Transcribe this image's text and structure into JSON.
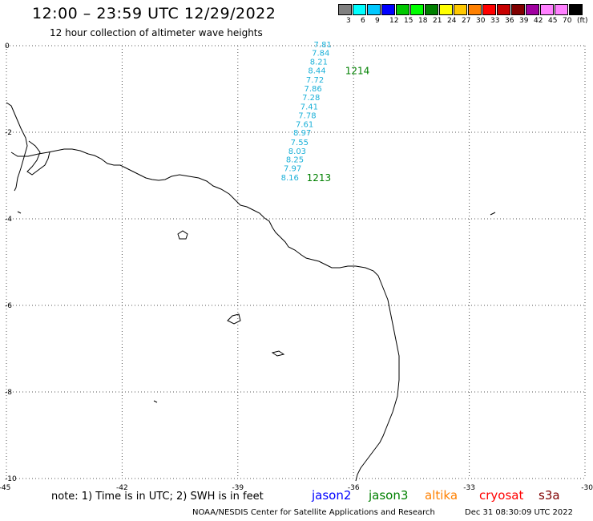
{
  "title": "12:00 – 23:59 UTC 12/29/2022",
  "subtitle": "12 hour collection of altimeter wave heights",
  "legend": {
    "colors": [
      "#808080",
      "#00ffff",
      "#00c8ff",
      "#0000ff",
      "#00c800",
      "#00ff00",
      "#008000",
      "#ffff00",
      "#ffc800",
      "#ff8000",
      "#ff0000",
      "#c80000",
      "#800000",
      "#a000a0",
      "#ff80ff",
      "#ff80ff",
      "#000000"
    ],
    "labels": [
      "3",
      "6",
      "9",
      "12",
      "15",
      "18",
      "21",
      "24",
      "27",
      "30",
      "33",
      "36",
      "39",
      "42",
      "45",
      "70",
      "(ft)"
    ]
  },
  "axes": {
    "lon_ticks": [
      "-45",
      "-42",
      "-39",
      "-36",
      "-33",
      "-30"
    ],
    "lat_ticks": [
      "0",
      "-2",
      "-4",
      "-6",
      "-8",
      "-10"
    ],
    "lon_range": [
      -45,
      -30
    ],
    "lat_range": [
      -10,
      0
    ]
  },
  "track": {
    "color": "#1ab0d8",
    "points": [
      {
        "lon": -36.8,
        "lat": 0.02,
        "value": "7.81"
      },
      {
        "lon": -36.85,
        "lat": -0.18,
        "value": "7.84"
      },
      {
        "lon": -36.9,
        "lat": -0.38,
        "value": "8.21"
      },
      {
        "lon": -36.95,
        "lat": -0.58,
        "value": "8.44"
      },
      {
        "lon": -37.0,
        "lat": -0.8,
        "value": "7.72"
      },
      {
        "lon": -37.05,
        "lat": -1.0,
        "value": "7.86"
      },
      {
        "lon": -37.1,
        "lat": -1.2,
        "value": "7.28"
      },
      {
        "lon": -37.15,
        "lat": -1.42,
        "value": "7.41"
      },
      {
        "lon": -37.2,
        "lat": -1.62,
        "value": "7.78"
      },
      {
        "lon": -37.27,
        "lat": -1.82,
        "value": "7.61"
      },
      {
        "lon": -37.33,
        "lat": -2.02,
        "value": "8.97"
      },
      {
        "lon": -37.4,
        "lat": -2.24,
        "value": "7.55"
      },
      {
        "lon": -37.46,
        "lat": -2.44,
        "value": "8.03"
      },
      {
        "lon": -37.52,
        "lat": -2.64,
        "value": "8.25"
      },
      {
        "lon": -37.58,
        "lat": -2.84,
        "value": "7.97"
      },
      {
        "lon": -37.65,
        "lat": -3.06,
        "value": "8.16"
      }
    ],
    "time_labels": [
      {
        "text": "1214",
        "lon": -35.9,
        "lat": -0.58,
        "color": "#008000"
      },
      {
        "text": "1213",
        "lon": -36.9,
        "lat": -3.06,
        "color": "#008000"
      }
    ]
  },
  "footer": {
    "note": "note: 1) Time is in UTC; 2) SWH is in feet",
    "satellites": [
      {
        "name": "jason2",
        "color": "#0000ff"
      },
      {
        "name": "jason3",
        "color": "#008000"
      },
      {
        "name": "altika",
        "color": "#ff8000"
      },
      {
        "name": "cryosat",
        "color": "#ff0000"
      },
      {
        "name": "s3a",
        "color": "#800000"
      }
    ],
    "credit": "NOAA/NESDIS Center for Satellite Applications and Research",
    "date": "Dec 31 08:30:09 UTC 2022"
  }
}
